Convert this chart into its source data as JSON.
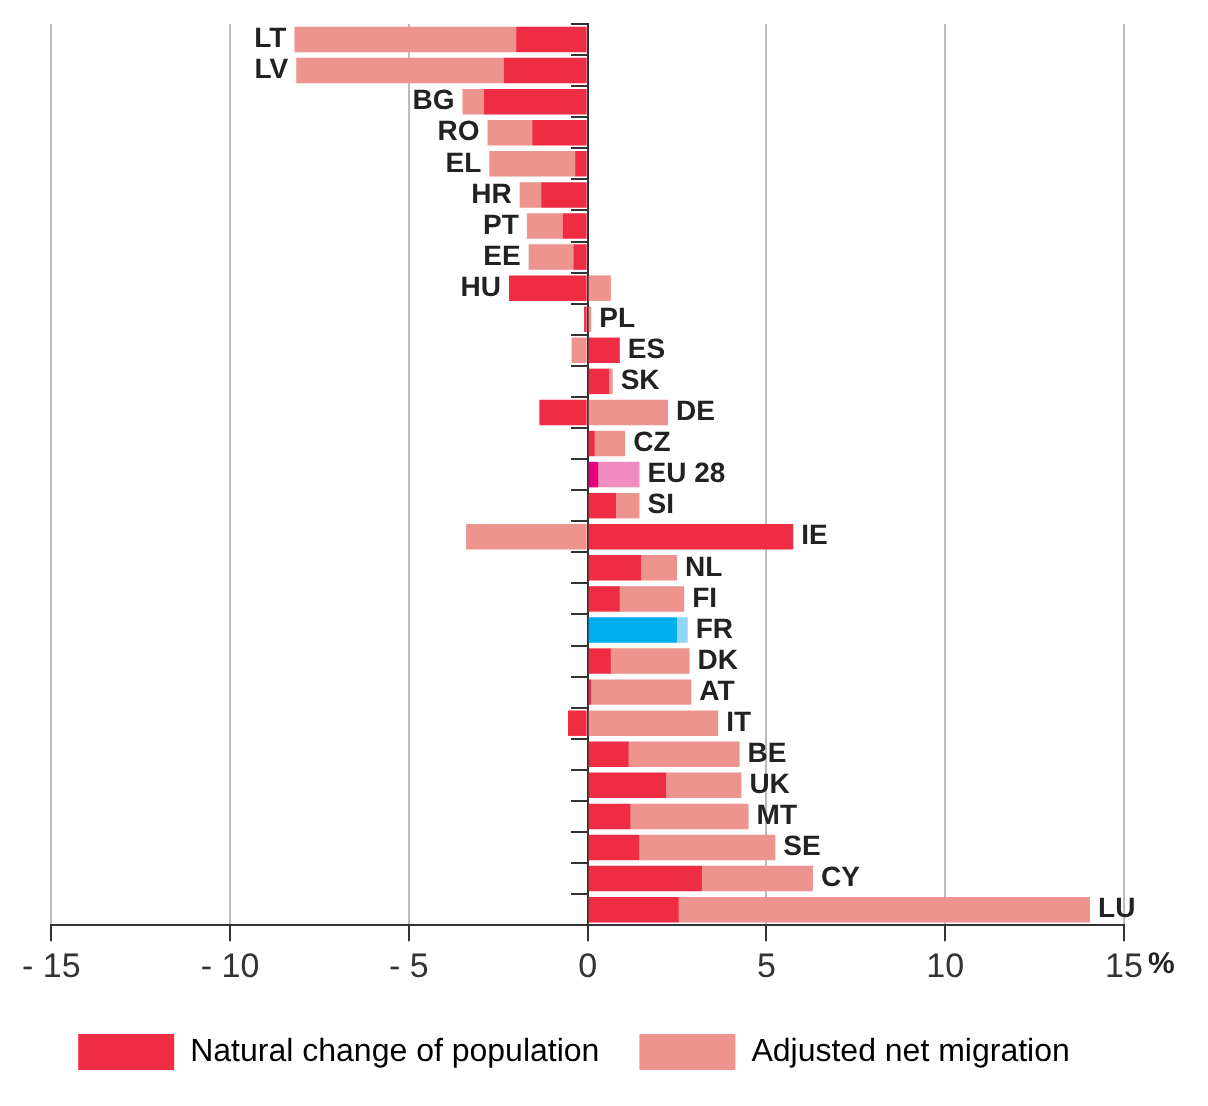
{
  "chart_data": {
    "type": "bar",
    "orientation": "horizontal",
    "stacked": true,
    "xlabel": "%",
    "categories": [
      "LT",
      "LV",
      "BG",
      "RO",
      "EL",
      "HR",
      "PT",
      "EE",
      "HU",
      "PL",
      "ES",
      "SK",
      "DE",
      "CZ",
      "EU 28",
      "SI",
      "IE",
      "NL",
      "FI",
      "FR",
      "DK",
      "AT",
      "IT",
      "BE",
      "UK",
      "MT",
      "SE",
      "CY",
      "LU"
    ],
    "series": [
      {
        "name": "Natural change of population",
        "color": "#ee2d44",
        "colors": [
          "#ee2d44",
          "#ee2d44",
          "#ee2d44",
          "#ee2d44",
          "#ee2d44",
          "#ee2d44",
          "#ee2d44",
          "#ee2d44",
          "#ee2d44",
          "#ee2d44",
          "#ee2d44",
          "#ee2d44",
          "#ee2d44",
          "#ee2d44",
          "#e6007e",
          "#ee2d44",
          "#ee2d44",
          "#ee2d44",
          "#ee2d44",
          "#00aeef",
          "#ee2d44",
          "#ee2d44",
          "#ee2d44",
          "#ee2d44",
          "#ee2d44",
          "#ee2d44",
          "#ee2d44",
          "#ee2d44",
          "#ee2d44"
        ],
        "values": [
          -2.0,
          -2.35,
          -2.9,
          -1.55,
          -0.35,
          -1.3,
          -0.7,
          -0.4,
          -2.2,
          -0.1,
          0.9,
          0.6,
          -1.35,
          0.2,
          0.3,
          0.8,
          5.75,
          1.5,
          0.9,
          2.5,
          0.65,
          0.1,
          -0.55,
          1.15,
          2.2,
          1.2,
          1.45,
          3.2,
          2.55
        ]
      },
      {
        "name": "Adjusted net migration",
        "color": "#ed948f",
        "colors": [
          "#ed948f",
          "#ed948f",
          "#ed948f",
          "#ed948f",
          "#ed948f",
          "#ed948f",
          "#ed948f",
          "#ed948f",
          "#ed948f",
          "#ed948f",
          "#ed948f",
          "#ed948f",
          "#ed948f",
          "#ed948f",
          "#f08cc0",
          "#ed948f",
          "#ed948f",
          "#ed948f",
          "#ed948f",
          "#8fd6f5",
          "#ed948f",
          "#ed948f",
          "#ed948f",
          "#ed948f",
          "#ed948f",
          "#ed948f",
          "#ed948f",
          "#ed948f",
          "#ed948f"
        ],
        "values": [
          -6.2,
          -5.8,
          -0.6,
          -1.25,
          -2.4,
          -0.6,
          -1.0,
          -1.25,
          0.65,
          0.1,
          -0.45,
          0.1,
          2.25,
          0.85,
          1.15,
          0.65,
          -3.4,
          1.0,
          1.8,
          0.3,
          2.2,
          2.8,
          3.65,
          3.1,
          2.1,
          3.3,
          3.8,
          3.1,
          11.5
        ]
      }
    ],
    "xlim": [
      -15,
      15
    ],
    "xticks": [
      {
        "value": -15,
        "label": "- 15"
      },
      {
        "value": -10,
        "label": "- 10"
      },
      {
        "value": -5,
        "label": "- 5"
      },
      0,
      5,
      10,
      15
    ],
    "grid": "x",
    "legend": "bottom"
  }
}
